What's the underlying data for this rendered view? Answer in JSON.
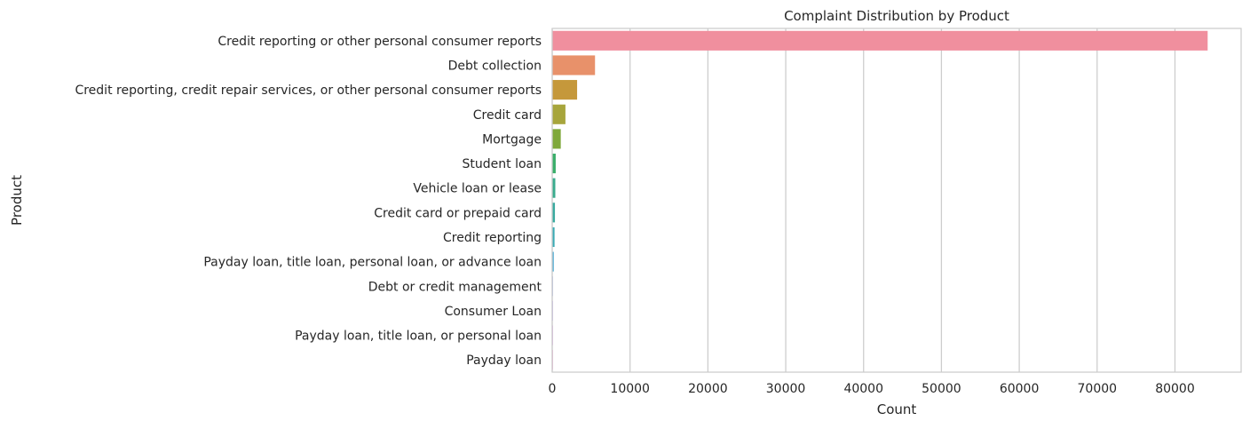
{
  "chart_data": {
    "type": "bar",
    "orientation": "horizontal",
    "title": "Complaint Distribution by Product",
    "xlabel": "Count",
    "ylabel": "Product",
    "xlim": [
      0,
      88500
    ],
    "xticks": [
      0,
      10000,
      20000,
      30000,
      40000,
      50000,
      60000,
      70000,
      80000
    ],
    "grid": "vertical",
    "categories": [
      "Credit reporting or other personal consumer reports",
      "Debt collection",
      "Credit reporting, credit repair services, or other personal consumer reports",
      "Credit card",
      "Mortgage",
      "Student loan",
      "Vehicle loan or lease",
      "Credit card or prepaid card",
      "Credit reporting",
      "Payday loan, title loan, personal loan, or advance loan",
      "Debt or credit management",
      "Consumer Loan",
      "Payday loan, title loan, or personal loan",
      "Payday loan"
    ],
    "values": [
      84200,
      5500,
      3200,
      1700,
      1100,
      450,
      400,
      350,
      300,
      200,
      50,
      40,
      30,
      20
    ],
    "colors": [
      "#f08f9e",
      "#e8916a",
      "#c5983b",
      "#a7a53c",
      "#7fa83a",
      "#3aae6a",
      "#3aac8e",
      "#3aaaa0",
      "#3aabb5",
      "#46a9d2",
      "#8fa3e8",
      "#b79bee",
      "#d993e6",
      "#ee8fd0"
    ]
  }
}
